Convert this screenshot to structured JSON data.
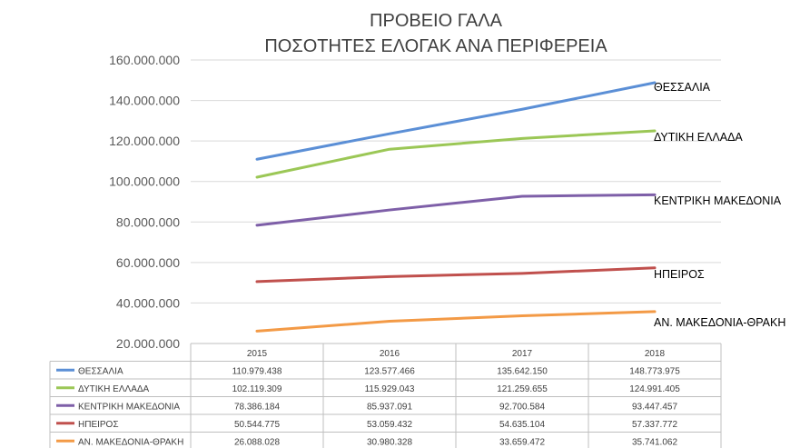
{
  "chart_data": {
    "type": "line",
    "title": "ΠΡΟΒΕΙΟ ΓΑΛΑ",
    "subtitle": "ΠΟΣΟΤΗΤΕΣ ΕΛΟΓΑΚ ΑΝΑ ΠΕΡΙΦΕΡΕΙΑ",
    "categories": [
      "2015",
      "2016",
      "2017",
      "2018"
    ],
    "ylim": [
      20000000,
      160000000
    ],
    "yticks": [
      20000000,
      40000000,
      60000000,
      80000000,
      100000000,
      120000000,
      140000000,
      160000000
    ],
    "ytick_labels": [
      "20.000.000",
      "40.000.000",
      "60.000.000",
      "80.000.000",
      "100.000.000",
      "120.000.000",
      "140.000.000",
      "160.000.000"
    ],
    "grid": true,
    "legend": "data-table-below",
    "series": [
      {
        "name": "ΘΕΣΣΑΛΙΑ",
        "color": "#5b8fd6",
        "values": [
          110979438,
          123577466,
          135642150,
          148773975
        ],
        "value_labels": [
          "110.979.438",
          "123.577.466",
          "135.642.150",
          "148.773.975"
        ]
      },
      {
        "name": "ΔΥΤΙΚΗ ΕΛΛΑΔΑ",
        "color": "#9bc756",
        "values": [
          102119309,
          115929043,
          121259655,
          124991405
        ],
        "value_labels": [
          "102.119.309",
          "115.929.043",
          "121.259.655",
          "124.991.405"
        ]
      },
      {
        "name": "ΚΕΝΤΡΙΚΗ ΜΑΚΕΔΟΝΙΑ",
        "color": "#7e5fa8",
        "values": [
          78386184,
          85937091,
          92700584,
          93447457
        ],
        "value_labels": [
          "78.386.184",
          "85.937.091",
          "92.700.584",
          "93.447.457"
        ]
      },
      {
        "name": "ΗΠΕΙΡΟΣ",
        "color": "#c0504d",
        "values": [
          50544775,
          53059432,
          54635104,
          57337772
        ],
        "value_labels": [
          "50.544.775",
          "53.059.432",
          "54.635.104",
          "57.337.772"
        ]
      },
      {
        "name": "ΑΝ. ΜΑΚΕΔΟΝΙΑ-ΘΡΑΚΗ",
        "color": "#f39a46",
        "values": [
          26088028,
          30980328,
          33659472,
          35741062
        ],
        "value_labels": [
          "26.088.028",
          "30.980.328",
          "33.659.472",
          "35.741.062"
        ]
      }
    ],
    "end_labels": [
      "ΘΕΣΣΑΛΙΑ",
      "ΔΥΤΙΚΗ ΕΛΛΑΔΑ",
      "ΚΕΝΤΡΙΚΗ ΜΑΚΕΔΟΝΙΑ",
      "ΗΠΕΙΡΟΣ",
      "ΑΝ. ΜΑΚΕΔΟΝΙΑ-ΘΡΑΚΗ"
    ],
    "colors": {
      "grid": "#d9d9d9",
      "table_border": "#bfbfbf"
    }
  }
}
